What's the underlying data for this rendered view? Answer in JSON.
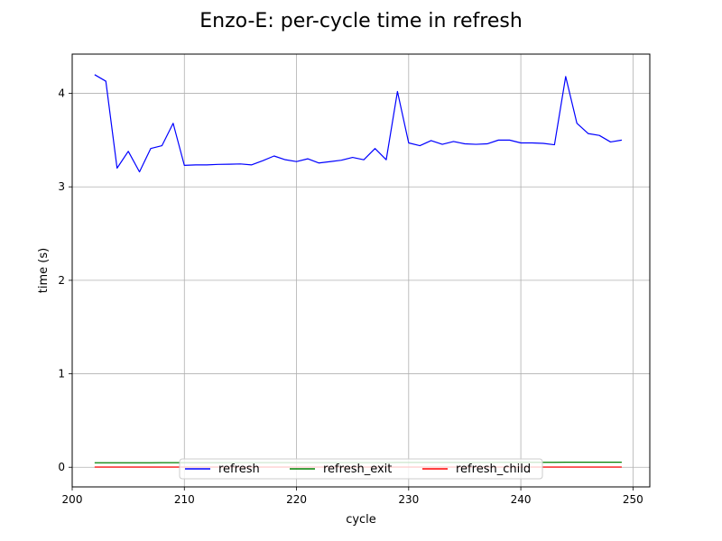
{
  "chart_data": {
    "type": "line",
    "title": "Enzo-E: per-cycle time in refresh",
    "xlabel": "cycle",
    "ylabel": "time (s)",
    "xlim": [
      200,
      251.5
    ],
    "ylim": [
      -0.21,
      4.42
    ],
    "xticks": [
      200,
      210,
      220,
      230,
      240,
      250
    ],
    "yticks": [
      0,
      1,
      2,
      3,
      4
    ],
    "grid": true,
    "legend_position": "bottom-center",
    "x": [
      202,
      203,
      204,
      205,
      206,
      207,
      208,
      209,
      210,
      211,
      212,
      213,
      214,
      215,
      216,
      217,
      218,
      219,
      220,
      221,
      222,
      223,
      224,
      225,
      226,
      227,
      228,
      229,
      230,
      231,
      232,
      233,
      234,
      235,
      236,
      237,
      238,
      239,
      240,
      241,
      242,
      243,
      244,
      245,
      246,
      247,
      248,
      249
    ],
    "series": [
      {
        "name": "refresh",
        "color": "#0000ff",
        "values": [
          4.2,
          4.13,
          3.2,
          3.38,
          3.16,
          3.41,
          3.44,
          3.68,
          3.23,
          3.235,
          3.235,
          3.24,
          3.242,
          3.245,
          3.235,
          3.28,
          3.33,
          3.29,
          3.27,
          3.3,
          3.255,
          3.27,
          3.285,
          3.315,
          3.29,
          3.41,
          3.29,
          4.02,
          3.47,
          3.44,
          3.495,
          3.455,
          3.485,
          3.46,
          3.455,
          3.46,
          3.5,
          3.5,
          3.47,
          3.47,
          3.465,
          3.45,
          4.18,
          3.68,
          3.57,
          3.55,
          3.48,
          3.5
        ]
      },
      {
        "name": "refresh_exit",
        "color": "#008000",
        "values": [
          0.048,
          0.048,
          0.048,
          0.048,
          0.048,
          0.048,
          0.049,
          0.049,
          0.049,
          0.049,
          0.049,
          0.049,
          0.05,
          0.05,
          0.05,
          0.05,
          0.05,
          0.05,
          0.05,
          0.05,
          0.05,
          0.05,
          0.05,
          0.05,
          0.05,
          0.05,
          0.05,
          0.052,
          0.052,
          0.052,
          0.052,
          0.052,
          0.052,
          0.052,
          0.052,
          0.052,
          0.053,
          0.053,
          0.053,
          0.053,
          0.053,
          0.053,
          0.054,
          0.054,
          0.054,
          0.054,
          0.054,
          0.054
        ]
      },
      {
        "name": "refresh_child",
        "color": "#ff0000",
        "values": [
          0.002,
          0.002,
          0.002,
          0.002,
          0.002,
          0.002,
          0.002,
          0.002,
          0.002,
          0.002,
          0.002,
          0.002,
          0.002,
          0.002,
          0.002,
          0.002,
          0.002,
          0.002,
          0.002,
          0.002,
          0.002,
          0.002,
          0.002,
          0.002,
          0.002,
          0.002,
          0.002,
          0.002,
          0.002,
          0.002,
          0.002,
          0.002,
          0.002,
          0.002,
          0.002,
          0.002,
          0.002,
          0.002,
          0.002,
          0.002,
          0.002,
          0.002,
          0.002,
          0.002,
          0.002,
          0.002,
          0.002,
          0.002
        ]
      }
    ]
  }
}
